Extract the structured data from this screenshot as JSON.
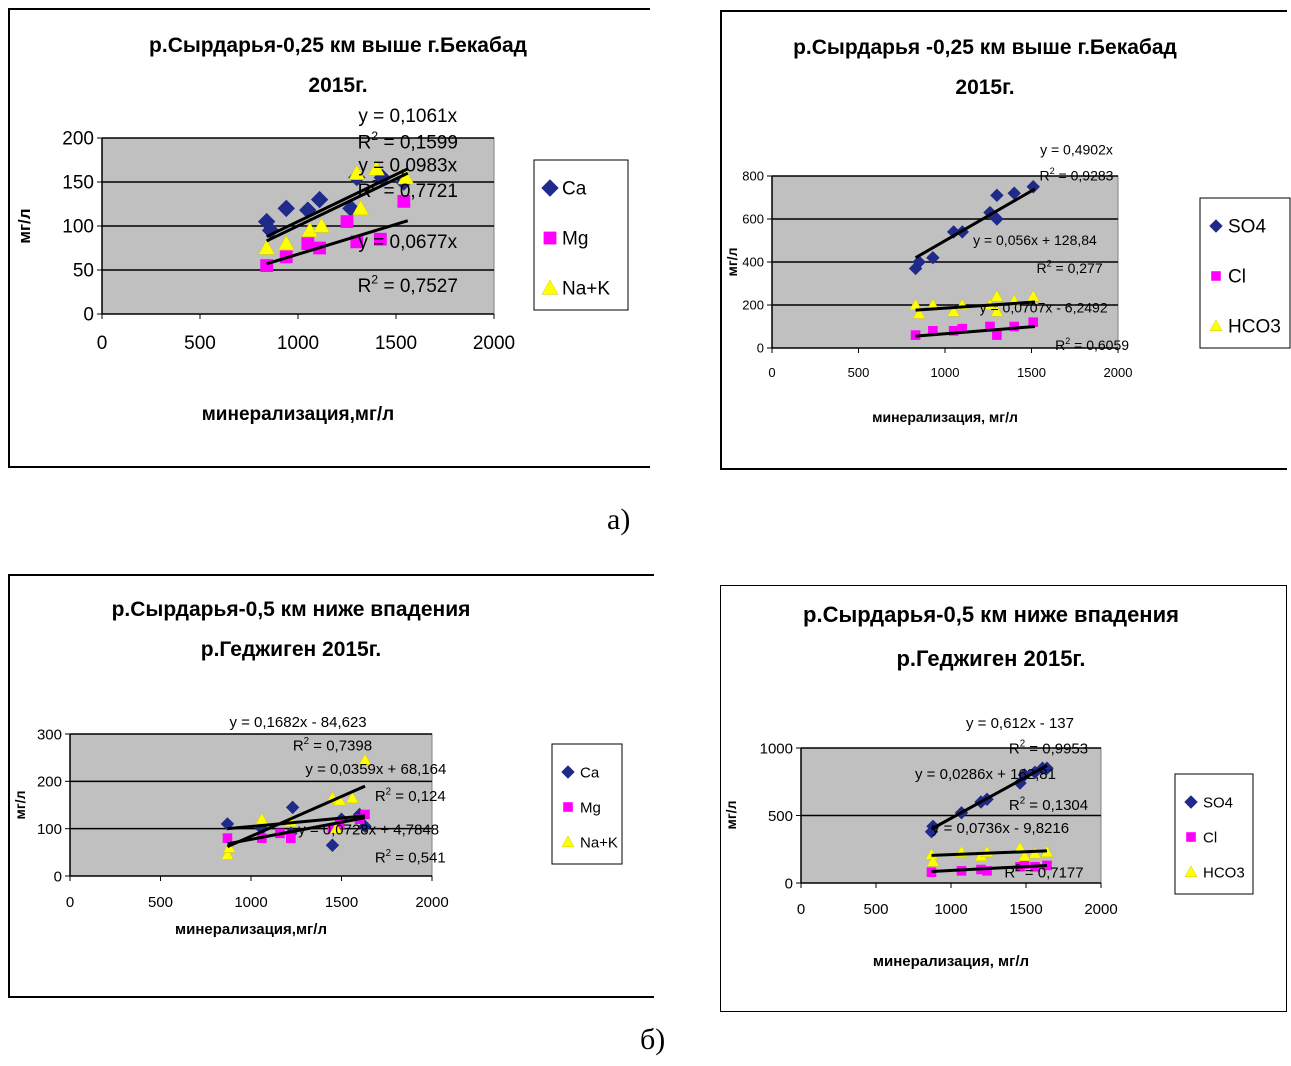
{
  "captions": {
    "a": "а)",
    "b": "б)"
  },
  "colors": {
    "plot_bg": "#c0c0c0",
    "ca_so4": "#1f2a8a",
    "mg_cl": "#ff00ff",
    "na_hco3": "#ffff00",
    "trend": "#000000"
  },
  "chart_data": [
    {
      "id": "c1",
      "type": "scatter",
      "title_lines": [
        "р.Сырдарья-0,25 км выше г.Бекабад",
        "2015г."
      ],
      "xlabel": "минерализация,мг/л",
      "ylabel": "мг/л",
      "xlim": [
        0,
        2000
      ],
      "ylim": [
        0,
        200
      ],
      "xticks": [
        "0",
        "500",
        "1000",
        "1500",
        "2000"
      ],
      "yticks": [
        "0",
        "50",
        "100",
        "150",
        "200"
      ],
      "grid": true,
      "legend_position": "right",
      "series": [
        {
          "name": "Ca",
          "marker": "diamond",
          "color": "#1f2a8a",
          "points": [
            [
              840,
              105
            ],
            [
              940,
              120
            ],
            [
              1050,
              118
            ],
            [
              1110,
              130
            ],
            [
              1300,
              155
            ],
            [
              1430,
              155
            ],
            [
              1540,
              150
            ],
            [
              860,
              95
            ],
            [
              1270,
              120
            ]
          ],
          "trend": {
            "x": [
              840,
              1560
            ],
            "y": [
              88,
              165
            ]
          }
        },
        {
          "name": "Mg",
          "marker": "square",
          "color": "#ff00ff",
          "points": [
            [
              840,
              55
            ],
            [
              940,
              65
            ],
            [
              1050,
              80
            ],
            [
              1110,
              75
            ],
            [
              1250,
              105
            ],
            [
              1300,
              82
            ],
            [
              1420,
              85
            ],
            [
              1540,
              128
            ]
          ],
          "trend": {
            "x": [
              840,
              1560
            ],
            "y": [
              57,
              106
            ]
          }
        },
        {
          "name": "Na+K",
          "marker": "triangle",
          "color": "#ffff00",
          "points": [
            [
              840,
              75
            ],
            [
              940,
              80
            ],
            [
              1060,
              95
            ],
            [
              1120,
              100
            ],
            [
              1300,
              160
            ],
            [
              1320,
              120
            ],
            [
              1400,
              165
            ],
            [
              1550,
              155
            ]
          ],
          "trend": {
            "x": [
              840,
              1560
            ],
            "y": [
              83,
              160
            ]
          }
        }
      ],
      "annotations": [
        {
          "text": "y = 0,1061x",
          "at": [
            1560,
            218
          ]
        },
        {
          "text": "R2 = 0,1599",
          "at": [
            1560,
            188
          ],
          "sup": true
        },
        {
          "text": "y = 0,0983x",
          "at": [
            1560,
            162
          ]
        },
        {
          "text": "R2 = 0,7721",
          "at": [
            1560,
            133
          ],
          "sup": true
        },
        {
          "text": "y = 0,0677x",
          "at": [
            1560,
            75
          ]
        },
        {
          "text": "R2 = 0,7527",
          "at": [
            1560,
            25
          ],
          "sup": true
        }
      ]
    },
    {
      "id": "c2",
      "type": "scatter",
      "title_lines": [
        "р.Сырдарья -0,25 км выше г.Бекабад",
        "2015г."
      ],
      "xlabel": "минерализация, мг/л",
      "ylabel": "мг/л",
      "xlim": [
        0,
        2000
      ],
      "ylim": [
        0,
        800
      ],
      "xticks": [
        "0",
        "500",
        "1000",
        "1500",
        "2000"
      ],
      "yticks": [
        "0",
        "200",
        "400",
        "600",
        "800"
      ],
      "grid": true,
      "legend_position": "right",
      "series": [
        {
          "name": "SO4",
          "marker": "diamond",
          "color": "#1f2a8a",
          "points": [
            [
              830,
              370
            ],
            [
              850,
              400
            ],
            [
              930,
              420
            ],
            [
              1050,
              540
            ],
            [
              1100,
              540
            ],
            [
              1260,
              630
            ],
            [
              1300,
              710
            ],
            [
              1300,
              600
            ],
            [
              1400,
              720
            ],
            [
              1510,
              750
            ]
          ],
          "trend": {
            "x": [
              830,
              1520
            ],
            "y": [
              420,
              740
            ]
          }
        },
        {
          "name": "Cl",
          "marker": "square",
          "color": "#ff00ff",
          "points": [
            [
              830,
              60
            ],
            [
              930,
              80
            ],
            [
              1050,
              80
            ],
            [
              1100,
              90
            ],
            [
              1260,
              100
            ],
            [
              1300,
              60
            ],
            [
              1400,
              100
            ],
            [
              1510,
              120
            ]
          ],
          "trend": {
            "x": [
              830,
              1520
            ],
            "y": [
              55,
              100
            ]
          }
        },
        {
          "name": "HCO3",
          "marker": "triangle",
          "color": "#ffff00",
          "points": [
            [
              830,
              200
            ],
            [
              850,
              160
            ],
            [
              930,
              200
            ],
            [
              1050,
              170
            ],
            [
              1100,
              200
            ],
            [
              1260,
              200
            ],
            [
              1300,
              240
            ],
            [
              1300,
              170
            ],
            [
              1400,
              220
            ],
            [
              1510,
              240
            ]
          ],
          "trend": {
            "x": [
              830,
              1520
            ],
            "y": [
              176,
              214
            ]
          }
        }
      ],
      "annotations": [
        {
          "text": "y = 0,4902x",
          "at": [
            1760,
            900
          ]
        },
        {
          "text": "R2 = 0,9283",
          "at": [
            1760,
            780
          ],
          "sup": true
        },
        {
          "text": "y = 0,056x + 128,84",
          "at": [
            1520,
            480
          ]
        },
        {
          "text": "R2 = 0,277",
          "at": [
            1720,
            350
          ],
          "sup": true
        },
        {
          "text": "y = 0,0707x - 6,2492",
          "at": [
            1570,
            165
          ]
        },
        {
          "text": "R2 = 0,6059",
          "at": [
            1850,
            -10
          ],
          "sup": true
        }
      ]
    },
    {
      "id": "c3",
      "type": "scatter",
      "title_lines": [
        "р.Сырдарья-0,5 км ниже впадения",
        "р.Геджиген 2015г."
      ],
      "xlabel": "минерализация,мг/л",
      "ylabel": "мг/л",
      "xlim": [
        0,
        2000
      ],
      "ylim": [
        0,
        300
      ],
      "xticks": [
        "0",
        "500",
        "1000",
        "1500",
        "2000"
      ],
      "yticks": [
        "0",
        "100",
        "200",
        "300"
      ],
      "grid": true,
      "legend_position": "right",
      "series": [
        {
          "name": "Ca",
          "marker": "diamond",
          "color": "#1f2a8a",
          "points": [
            [
              870,
              110
            ],
            [
              1060,
              100
            ],
            [
              1220,
              90
            ],
            [
              1230,
              145
            ],
            [
              1450,
              65
            ],
            [
              1500,
              120
            ],
            [
              1600,
              130
            ],
            [
              1630,
              105
            ]
          ],
          "trend": {
            "x": [
              870,
              1630
            ],
            "y": [
              100,
              127
            ]
          }
        },
        {
          "name": "Mg",
          "marker": "square",
          "color": "#ff00ff",
          "points": [
            [
              870,
              80
            ],
            [
              1060,
              80
            ],
            [
              1160,
              90
            ],
            [
              1220,
              80
            ],
            [
              1450,
              100
            ],
            [
              1490,
              110
            ],
            [
              1600,
              120
            ],
            [
              1630,
              130
            ]
          ],
          "trend": {
            "x": [
              870,
              1630
            ],
            "y": [
              68,
              123
            ]
          }
        },
        {
          "name": "Na+K",
          "marker": "triangle",
          "color": "#ffff00",
          "points": [
            [
              870,
              45
            ],
            [
              880,
              60
            ],
            [
              1060,
              120
            ],
            [
              1220,
              115
            ],
            [
              1450,
              165
            ],
            [
              1490,
              160
            ],
            [
              1560,
              165
            ],
            [
              1630,
              245
            ],
            [
              1470,
              100
            ]
          ],
          "trend": {
            "x": [
              870,
              1630
            ],
            "y": [
              62,
              190
            ]
          }
        }
      ],
      "annotations": [
        {
          "text": "y = 0,1682x - 84,623",
          "at": [
            1260,
            315
          ]
        },
        {
          "text": "R2 = 0,7398",
          "at": [
            1450,
            265
          ],
          "sup": true
        },
        {
          "text": "y = 0,0359x + 68,164",
          "at": [
            1690,
            215
          ]
        },
        {
          "text": "R2 = 0,124",
          "at": [
            1880,
            158
          ],
          "sup": true
        },
        {
          "text": "y = 0,0728x + 4,7848",
          "at": [
            1650,
            88
          ]
        },
        {
          "text": "R2 = 0,541",
          "at": [
            1880,
            28
          ],
          "sup": true
        }
      ]
    },
    {
      "id": "c4",
      "type": "scatter",
      "title_lines": [
        "р.Сырдарья-0,5 км ниже впадения",
        "р.Геджиген 2015г."
      ],
      "xlabel": "минерализация, мг/л",
      "ylabel": "мг/л",
      "xlim": [
        0,
        2000
      ],
      "ylim": [
        0,
        1000
      ],
      "xticks": [
        "0",
        "500",
        "1000",
        "1500",
        "2000"
      ],
      "yticks": [
        "0",
        "500",
        "1000"
      ],
      "grid": true,
      "legend_position": "right",
      "series": [
        {
          "name": "SO4",
          "marker": "diamond",
          "color": "#1f2a8a",
          "points": [
            [
              870,
              380
            ],
            [
              880,
              420
            ],
            [
              1070,
              520
            ],
            [
              1200,
              600
            ],
            [
              1240,
              620
            ],
            [
              1460,
              740
            ],
            [
              1490,
              800
            ],
            [
              1560,
              820
            ],
            [
              1610,
              850
            ],
            [
              1640,
              850
            ]
          ],
          "trend": {
            "x": [
              870,
              1640
            ],
            "y": [
              400,
              870
            ]
          }
        },
        {
          "name": "Cl",
          "marker": "square",
          "color": "#ff00ff",
          "points": [
            [
              870,
              80
            ],
            [
              1070,
              90
            ],
            [
              1200,
              100
            ],
            [
              1240,
              90
            ],
            [
              1460,
              120
            ],
            [
              1490,
              140
            ],
            [
              1560,
              120
            ],
            [
              1640,
              130
            ]
          ],
          "trend": {
            "x": [
              870,
              1640
            ],
            "y": [
              85,
              130
            ]
          }
        },
        {
          "name": "HCO3",
          "marker": "triangle",
          "color": "#ffff00",
          "points": [
            [
              870,
              210
            ],
            [
              880,
              160
            ],
            [
              1070,
              230
            ],
            [
              1200,
              200
            ],
            [
              1240,
              230
            ],
            [
              1460,
              260
            ],
            [
              1490,
              200
            ],
            [
              1560,
              220
            ],
            [
              1640,
              230
            ]
          ],
          "trend": {
            "x": [
              870,
              1640
            ],
            "y": [
              205,
              238
            ]
          }
        }
      ],
      "annotations": [
        {
          "text": "y = 0,612x - 137",
          "at": [
            1460,
            1150
          ]
        },
        {
          "text": "R2 = 0,9953",
          "at": [
            1650,
            960
          ],
          "sup": true
        },
        {
          "text": "y = 0,0286x + 162,81",
          "at": [
            1230,
            770
          ]
        },
        {
          "text": "R2 = 0,1304",
          "at": [
            1650,
            540
          ],
          "sup": true
        },
        {
          "text": "y = 0,0736x - 9,8216",
          "at": [
            1330,
            370
          ]
        },
        {
          "text": "R2 = 0,7177",
          "at": [
            1620,
            40
          ],
          "sup": true
        }
      ]
    }
  ]
}
